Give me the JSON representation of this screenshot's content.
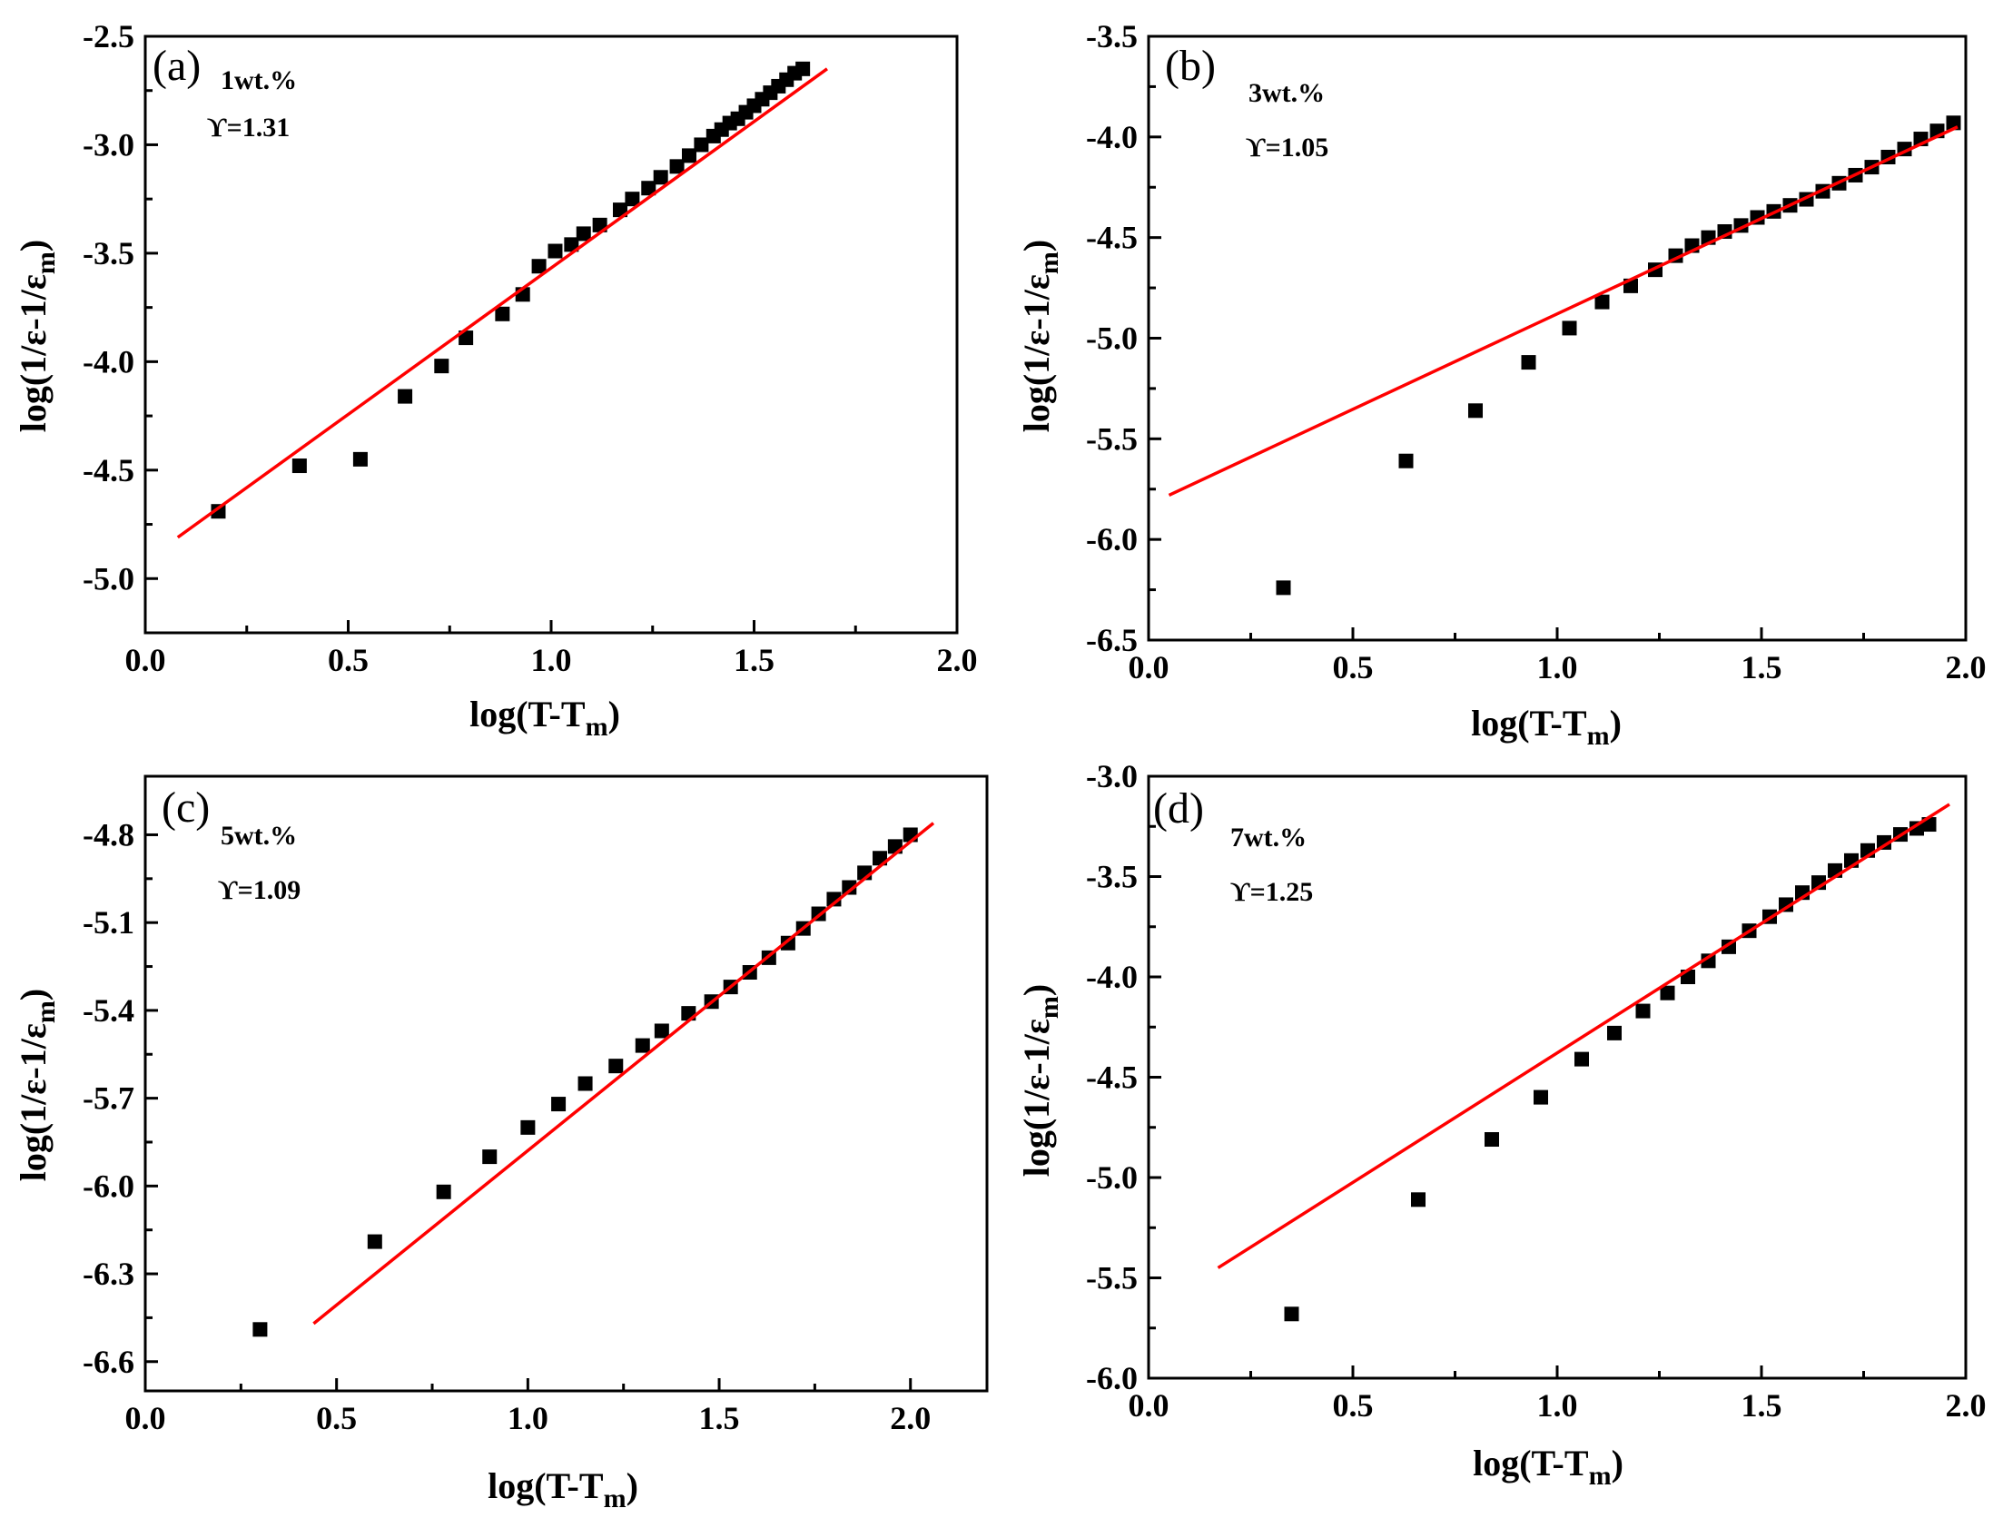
{
  "chart_data": [
    {
      "type": "scatter",
      "panel": "(a)",
      "annotation": "1wt.%",
      "gamma": "ϒ=1.31",
      "xlabel": "log(T-T",
      "xlabel_sub": "m",
      "xlabel_end": ")",
      "ylabel": "log(1/ε-1/ε",
      "ylabel_sub": "m",
      "ylabel_end": ")",
      "xlim": [
        0.0,
        2.0
      ],
      "ylim": [
        -5.25,
        -2.5
      ],
      "xticks": [
        0.0,
        0.5,
        1.0,
        1.5,
        2.0
      ],
      "xtick_labels": [
        "0.0",
        "0.5",
        "1.0",
        "1.5",
        "2.0"
      ],
      "yticks": [
        -2.5,
        -3.0,
        -3.5,
        -4.0,
        -4.5,
        -5.0
      ],
      "ytick_labels": [
        "-2.5",
        "-3.0",
        "-3.5",
        "-4.0",
        "-4.5",
        "-5.0"
      ],
      "x": [
        0.18,
        0.38,
        0.53,
        0.64,
        0.73,
        0.79,
        0.88,
        0.93,
        0.97,
        1.01,
        1.05,
        1.08,
        1.12,
        1.17,
        1.2,
        1.24,
        1.27,
        1.31,
        1.34,
        1.37,
        1.4,
        1.42,
        1.44,
        1.46,
        1.48,
        1.5,
        1.52,
        1.54,
        1.56,
        1.58,
        1.6,
        1.62
      ],
      "y": [
        -4.69,
        -4.48,
        -4.45,
        -4.16,
        -4.02,
        -3.89,
        -3.78,
        -3.69,
        -3.56,
        -3.49,
        -3.46,
        -3.41,
        -3.37,
        -3.3,
        -3.25,
        -3.2,
        -3.15,
        -3.1,
        -3.05,
        -3.0,
        -2.96,
        -2.93,
        -2.9,
        -2.88,
        -2.85,
        -2.82,
        -2.79,
        -2.76,
        -2.73,
        -2.7,
        -2.67,
        -2.65
      ],
      "fit": {
        "x": [
          0.08,
          1.68
        ],
        "y": [
          -4.81,
          -2.65
        ]
      }
    },
    {
      "type": "scatter",
      "panel": "(b)",
      "annotation": "3wt.%",
      "gamma": "ϒ=1.05",
      "xlabel": "log(T-T",
      "xlabel_sub": "m",
      "xlabel_end": ")",
      "ylabel": "log(1/ε-1/ε",
      "ylabel_sub": "m",
      "ylabel_end": ")",
      "xlim": [
        0.0,
        2.0
      ],
      "ylim": [
        -6.5,
        -3.5
      ],
      "xticks": [
        0.0,
        0.5,
        1.0,
        1.5,
        2.0
      ],
      "xtick_labels": [
        "0.0",
        "0.5",
        "1.0",
        "1.5",
        "2.0"
      ],
      "yticks": [
        -3.5,
        -4.0,
        -4.5,
        -5.0,
        -5.5,
        -6.0,
        -6.5
      ],
      "ytick_labels": [
        "-3.5",
        "-4.0",
        "-4.5",
        "-5.0",
        "-5.5",
        "-6.0",
        "-6.5"
      ],
      "x": [
        0.33,
        0.63,
        0.8,
        0.93,
        1.03,
        1.11,
        1.18,
        1.24,
        1.29,
        1.33,
        1.37,
        1.41,
        1.45,
        1.49,
        1.53,
        1.57,
        1.61,
        1.65,
        1.69,
        1.73,
        1.77,
        1.81,
        1.85,
        1.89,
        1.93,
        1.97
      ],
      "y": [
        -6.24,
        -5.61,
        -5.36,
        -5.12,
        -4.95,
        -4.82,
        -4.74,
        -4.66,
        -4.59,
        -4.54,
        -4.5,
        -4.47,
        -4.44,
        -4.4,
        -4.37,
        -4.34,
        -4.31,
        -4.27,
        -4.23,
        -4.19,
        -4.15,
        -4.1,
        -4.06,
        -4.01,
        -3.97,
        -3.93
      ],
      "fit": {
        "x": [
          0.05,
          1.98
        ],
        "y": [
          -5.78,
          -3.95
        ]
      }
    },
    {
      "type": "scatter",
      "panel": "(c)",
      "annotation": "5wt.%",
      "gamma": "ϒ=1.09",
      "xlabel": "log(T-T",
      "xlabel_sub": "m",
      "xlabel_end": ")",
      "ylabel": "log(1/ε-1/ε",
      "ylabel_sub": "m",
      "ylabel_end": ")",
      "xlim": [
        0.0,
        2.2
      ],
      "ylim": [
        -6.7,
        -4.6
      ],
      "xticks": [
        0.0,
        0.5,
        1.0,
        1.5,
        2.0
      ],
      "xtick_labels": [
        "0.0",
        "0.5",
        "1.0",
        "1.5",
        "2.0"
      ],
      "yticks": [
        -4.8,
        -5.1,
        -5.4,
        -5.7,
        -6.0,
        -6.3,
        -6.6
      ],
      "ytick_labels": [
        "-4.8",
        "-5.1",
        "-5.4",
        "-5.7",
        "-6.0",
        "-6.3",
        "-6.6"
      ],
      "x": [
        0.3,
        0.6,
        0.78,
        0.9,
        1.0,
        1.08,
        1.15,
        1.23,
        1.3,
        1.35,
        1.42,
        1.48,
        1.53,
        1.58,
        1.63,
        1.68,
        1.72,
        1.76,
        1.8,
        1.84,
        1.88,
        1.92,
        1.96,
        2.0
      ],
      "y": [
        -6.49,
        -6.19,
        -6.02,
        -5.9,
        -5.8,
        -5.72,
        -5.65,
        -5.59,
        -5.52,
        -5.47,
        -5.41,
        -5.37,
        -5.32,
        -5.27,
        -5.22,
        -5.17,
        -5.12,
        -5.07,
        -5.02,
        -4.98,
        -4.93,
        -4.88,
        -4.84,
        -4.8
      ],
      "fit": {
        "x": [
          0.44,
          2.06
        ],
        "y": [
          -6.47,
          -4.76
        ]
      }
    },
    {
      "type": "scatter",
      "panel": "(d)",
      "annotation": "7wt.%",
      "gamma": "ϒ=1.25",
      "xlabel": "log(T-T",
      "xlabel_sub": "m",
      "xlabel_end": ")",
      "ylabel": "log(1/ε-1/ε",
      "ylabel_sub": "m",
      "ylabel_end": ")",
      "xlim": [
        0.0,
        2.0
      ],
      "ylim": [
        -6.0,
        -3.0
      ],
      "xticks": [
        0.0,
        0.5,
        1.0,
        1.5,
        2.0
      ],
      "xtick_labels": [
        "0.0",
        "0.5",
        "1.0",
        "1.5",
        "2.0"
      ],
      "yticks": [
        -3.0,
        -3.5,
        -4.0,
        -4.5,
        -5.0,
        -5.5,
        -6.0
      ],
      "ytick_labels": [
        "-3.0",
        "-3.5",
        "-4.0",
        "-4.5",
        "-5.0",
        "-5.5",
        "-6.0"
      ],
      "x": [
        0.35,
        0.66,
        0.84,
        0.96,
        1.06,
        1.14,
        1.21,
        1.27,
        1.32,
        1.37,
        1.42,
        1.47,
        1.52,
        1.56,
        1.6,
        1.64,
        1.68,
        1.72,
        1.76,
        1.8,
        1.84,
        1.88,
        1.91
      ],
      "y": [
        -5.68,
        -5.11,
        -4.81,
        -4.6,
        -4.41,
        -4.28,
        -4.17,
        -4.08,
        -4.0,
        -3.92,
        -3.85,
        -3.77,
        -3.7,
        -3.64,
        -3.58,
        -3.53,
        -3.47,
        -3.42,
        -3.37,
        -3.33,
        -3.29,
        -3.26,
        -3.24
      ],
      "fit": {
        "x": [
          0.17,
          1.96
        ],
        "y": [
          -5.45,
          -3.14
        ]
      }
    }
  ]
}
